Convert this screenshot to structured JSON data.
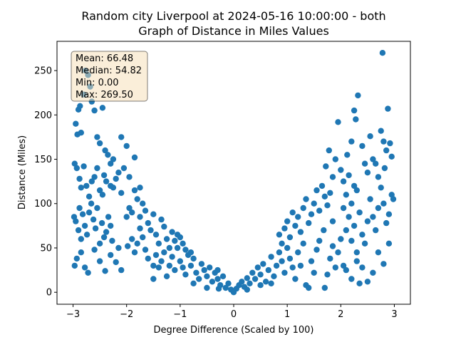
{
  "chart_data": {
    "type": "scatter",
    "title_line1": "Random city Liverpool at 2024-05-16 10:00:00  - both",
    "title_line2": "Graph of Distance in Miles Values",
    "xlabel": "Degree Difference (Scaled by 100)",
    "ylabel": "Distance (Miles)",
    "xlim": [
      -3.3,
      3.3
    ],
    "ylim": [
      -13.5,
      283
    ],
    "xticks": [
      -3,
      -2,
      -1,
      0,
      1,
      2,
      3
    ],
    "yticks": [
      0,
      50,
      100,
      150,
      200,
      250
    ],
    "grid": false,
    "marker_color": "#1f77b4",
    "stats_box": {
      "mean": "Mean: 66.48",
      "median": "Median: 54.82",
      "min": "Min: 0.00",
      "max": "Max: 269.50",
      "facecolor": "#f5deb3",
      "placement": "top-left"
    },
    "points": [
      [
        -2.95,
        190
      ],
      [
        -2.92,
        178
      ],
      [
        -2.9,
        206
      ],
      [
        -2.87,
        210
      ],
      [
        -2.85,
        180
      ],
      [
        -2.8,
        223
      ],
      [
        -2.77,
        250
      ],
      [
        -2.72,
        245
      ],
      [
        -2.68,
        232
      ],
      [
        -2.65,
        215
      ],
      [
        -2.6,
        205
      ],
      [
        -2.55,
        175
      ],
      [
        -2.5,
        168
      ],
      [
        -2.45,
        208
      ],
      [
        -2.4,
        160
      ],
      [
        -2.35,
        155
      ],
      [
        -2.3,
        145
      ],
      [
        -2.25,
        150
      ],
      [
        -2.1,
        175
      ],
      [
        -2.0,
        165
      ],
      [
        -2.97,
        145
      ],
      [
        -2.93,
        140
      ],
      [
        -2.88,
        128
      ],
      [
        -2.85,
        118
      ],
      [
        -2.8,
        142
      ],
      [
        -2.75,
        120
      ],
      [
        -2.7,
        108
      ],
      [
        -2.65,
        125
      ],
      [
        -2.6,
        130
      ],
      [
        -2.55,
        140
      ],
      [
        -2.5,
        115
      ],
      [
        -2.45,
        110
      ],
      [
        -2.42,
        132
      ],
      [
        -2.38,
        125
      ],
      [
        -2.3,
        120
      ],
      [
        -2.25,
        118
      ],
      [
        -2.2,
        128
      ],
      [
        -2.15,
        135
      ],
      [
        -2.1,
        112
      ],
      [
        -2.05,
        140
      ],
      [
        -2.98,
        85
      ],
      [
        -2.95,
        80
      ],
      [
        -2.9,
        70
      ],
      [
        -2.88,
        95
      ],
      [
        -2.85,
        60
      ],
      [
        -2.82,
        88
      ],
      [
        -2.78,
        75
      ],
      [
        -2.74,
        65
      ],
      [
        -2.7,
        90
      ],
      [
        -2.66,
        100
      ],
      [
        -2.62,
        82
      ],
      [
        -2.58,
        72
      ],
      [
        -2.55,
        95
      ],
      [
        -2.5,
        55
      ],
      [
        -2.46,
        78
      ],
      [
        -2.42,
        62
      ],
      [
        -2.38,
        68
      ],
      [
        -2.34,
        85
      ],
      [
        -2.3,
        75
      ],
      [
        -2.27,
        58
      ],
      [
        -2.97,
        30
      ],
      [
        -2.93,
        38
      ],
      [
        -2.85,
        45
      ],
      [
        -2.78,
        28
      ],
      [
        -2.72,
        22
      ],
      [
        -2.6,
        48
      ],
      [
        -2.5,
        35
      ],
      [
        -2.4,
        24
      ],
      [
        -2.3,
        42
      ],
      [
        -2.2,
        34
      ],
      [
        -2.15,
        50
      ],
      [
        -2.1,
        25
      ],
      [
        -1.98,
        52
      ],
      [
        -1.9,
        60
      ],
      [
        -1.85,
        45
      ],
      [
        -1.8,
        55
      ],
      [
        -1.75,
        72
      ],
      [
        -1.7,
        62
      ],
      [
        -1.65,
        48
      ],
      [
        -1.6,
        38
      ],
      [
        -1.95,
        95
      ],
      [
        -1.9,
        90
      ],
      [
        -1.85,
        115
      ],
      [
        -1.8,
        105
      ],
      [
        -1.75,
        85
      ],
      [
        -1.7,
        100
      ],
      [
        -1.65,
        92
      ],
      [
        -1.6,
        78
      ],
      [
        -1.55,
        70
      ],
      [
        -1.5,
        88
      ],
      [
        -1.85,
        152
      ],
      [
        -1.95,
        130
      ],
      [
        -1.75,
        118
      ],
      [
        -1.45,
        65
      ],
      [
        -1.4,
        55
      ],
      [
        -1.35,
        82
      ],
      [
        -1.3,
        74
      ],
      [
        -1.25,
        60
      ],
      [
        -1.2,
        50
      ],
      [
        -1.15,
        68
      ],
      [
        -1.5,
        30
      ],
      [
        -1.45,
        42
      ],
      [
        -1.4,
        28
      ],
      [
        -1.35,
        35
      ],
      [
        -1.3,
        45
      ],
      [
        -1.25,
        18
      ],
      [
        -1.2,
        30
      ],
      [
        -1.15,
        40
      ],
      [
        -1.1,
        25
      ],
      [
        -1.05,
        50
      ],
      [
        -1.0,
        35
      ],
      [
        -0.95,
        28
      ],
      [
        -0.9,
        20
      ],
      [
        -0.85,
        42
      ],
      [
        -0.8,
        30
      ],
      [
        -0.75,
        38
      ],
      [
        -0.7,
        22
      ],
      [
        -0.65,
        15
      ],
      [
        -0.6,
        32
      ],
      [
        -0.55,
        25
      ],
      [
        -1.0,
        62
      ],
      [
        -0.95,
        55
      ],
      [
        -0.9,
        48
      ],
      [
        -0.8,
        45
      ],
      [
        -1.1,
        58
      ],
      [
        -1.05,
        65
      ],
      [
        -0.5,
        18
      ],
      [
        -0.45,
        28
      ],
      [
        -0.4,
        12
      ],
      [
        -0.35,
        22
      ],
      [
        -0.3,
        15
      ],
      [
        -0.25,
        8
      ],
      [
        -0.2,
        18
      ],
      [
        -0.15,
        5
      ],
      [
        -0.1,
        10
      ],
      [
        -0.05,
        3
      ],
      [
        0.0,
        0
      ],
      [
        0.05,
        4
      ],
      [
        0.1,
        8
      ],
      [
        -0.28,
        4
      ],
      [
        0.15,
        12
      ],
      [
        0.2,
        6
      ],
      [
        0.25,
        16
      ],
      [
        0.3,
        10
      ],
      [
        0.35,
        22
      ],
      [
        0.4,
        15
      ],
      [
        0.45,
        28
      ],
      [
        0.5,
        20
      ],
      [
        0.55,
        32
      ],
      [
        0.6,
        12
      ],
      [
        0.65,
        25
      ],
      [
        0.7,
        40
      ],
      [
        0.75,
        18
      ],
      [
        0.8,
        30
      ],
      [
        0.85,
        45
      ],
      [
        0.9,
        35
      ],
      [
        0.95,
        22
      ],
      [
        1.0,
        50
      ],
      [
        1.05,
        38
      ],
      [
        1.1,
        28
      ],
      [
        0.85,
        65
      ],
      [
        0.9,
        55
      ],
      [
        0.95,
        72
      ],
      [
        1.0,
        80
      ],
      [
        1.05,
        62
      ],
      [
        1.1,
        90
      ],
      [
        1.15,
        75
      ],
      [
        1.2,
        85
      ],
      [
        1.25,
        68
      ],
      [
        1.3,
        95
      ],
      [
        1.35,
        105
      ],
      [
        1.4,
        78
      ],
      [
        1.45,
        88
      ],
      [
        1.5,
        100
      ],
      [
        1.55,
        115
      ],
      [
        1.6,
        92
      ],
      [
        1.65,
        120
      ],
      [
        1.7,
        108
      ],
      [
        1.75,
        98
      ],
      [
        1.8,
        112
      ],
      [
        1.2,
        45
      ],
      [
        1.25,
        30
      ],
      [
        1.3,
        55
      ],
      [
        1.35,
        8
      ],
      [
        1.4,
        5
      ],
      [
        1.45,
        35
      ],
      [
        1.5,
        22
      ],
      [
        1.55,
        48
      ],
      [
        1.6,
        58
      ],
      [
        1.7,
        5
      ],
      [
        1.75,
        20
      ],
      [
        1.8,
        38
      ],
      [
        1.85,
        52
      ],
      [
        1.9,
        28
      ],
      [
        1.95,
        45
      ],
      [
        2.0,
        60
      ],
      [
        1.68,
        70
      ],
      [
        1.72,
        142
      ],
      [
        1.78,
        160
      ],
      [
        1.85,
        130
      ],
      [
        1.9,
        150
      ],
      [
        1.95,
        192
      ],
      [
        2.0,
        138
      ],
      [
        2.05,
        125
      ],
      [
        2.1,
        110
      ],
      [
        2.15,
        132
      ],
      [
        2.2,
        100
      ],
      [
        2.25,
        120
      ],
      [
        2.3,
        115
      ],
      [
        1.85,
        80
      ],
      [
        2.25,
        205
      ],
      [
        2.28,
        195
      ],
      [
        2.32,
        222
      ],
      [
        2.4,
        165
      ],
      [
        2.45,
        145
      ],
      [
        2.5,
        135
      ],
      [
        2.55,
        176
      ],
      [
        2.6,
        150
      ],
      [
        2.2,
        170
      ],
      [
        2.12,
        155
      ],
      [
        2.05,
        95
      ],
      [
        2.1,
        70
      ],
      [
        2.15,
        85
      ],
      [
        2.2,
        58
      ],
      [
        2.25,
        75
      ],
      [
        2.3,
        45
      ],
      [
        2.35,
        90
      ],
      [
        2.4,
        65
      ],
      [
        2.45,
        55
      ],
      [
        2.5,
        80
      ],
      [
        2.55,
        105
      ],
      [
        2.6,
        85
      ],
      [
        2.65,
        70
      ],
      [
        2.7,
        95
      ],
      [
        2.75,
        118
      ],
      [
        2.8,
        100
      ],
      [
        2.85,
        78
      ],
      [
        2.9,
        88
      ],
      [
        2.95,
        110
      ],
      [
        2.98,
        105
      ],
      [
        2.05,
        30
      ],
      [
        2.1,
        25
      ],
      [
        2.2,
        15
      ],
      [
        2.3,
        35
      ],
      [
        2.4,
        28
      ],
      [
        2.5,
        12
      ],
      [
        2.6,
        22
      ],
      [
        2.7,
        45
      ],
      [
        2.8,
        32
      ],
      [
        2.9,
        55
      ],
      [
        2.75,
        182
      ],
      [
        2.8,
        170
      ],
      [
        2.85,
        160
      ],
      [
        2.88,
        207
      ],
      [
        2.92,
        168
      ],
      [
        2.95,
        153
      ],
      [
        2.78,
        270
      ],
      [
        2.82,
        140
      ],
      [
        2.7,
        130
      ],
      [
        2.65,
        145
      ],
      [
        -0.75,
        10
      ],
      [
        -0.5,
        5
      ],
      [
        -0.3,
        25
      ],
      [
        0.25,
        3
      ],
      [
        0.5,
        8
      ],
      [
        0.7,
        10
      ],
      [
        -1.5,
        15
      ],
      [
        1.15,
        15
      ],
      [
        2.35,
        10
      ],
      [
        -2.0,
        85
      ]
    ]
  }
}
